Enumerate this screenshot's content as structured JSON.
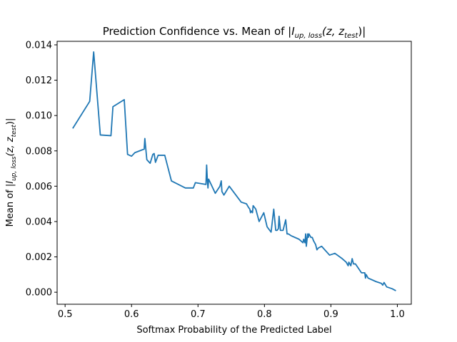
{
  "chart_data": {
    "type": "line",
    "title": "Prediction Confidence vs. Mean of |I_{up, loss}(z, z_{test})|",
    "title_parts": {
      "prefix": "Prediction Confidence vs. Mean of |",
      "I": "I",
      "I_sub": "up, loss",
      "args_open": "(z, z",
      "args_sub": "test",
      "args_close": ")|"
    },
    "xlabel": "Softmax Probability of the Predicted Label",
    "ylabel_parts": {
      "prefix": "Mean of |",
      "I": "I",
      "I_sub": "up, loss",
      "args_open": "(z, z",
      "args_sub": "test",
      "args_close": ")|"
    },
    "xlim": [
      0.488,
      1.021
    ],
    "ylim": [
      -0.00068,
      0.0142
    ],
    "xticks": [
      0.5,
      0.6,
      0.7,
      0.8,
      0.9,
      1.0
    ],
    "xtick_labels": [
      "0.5",
      "0.6",
      "0.7",
      "0.8",
      "0.9",
      "1.0"
    ],
    "yticks": [
      0.0,
      0.002,
      0.004,
      0.006,
      0.008,
      0.01,
      0.012,
      0.014
    ],
    "ytick_labels": [
      "0.000",
      "0.002",
      "0.004",
      "0.006",
      "0.008",
      "0.010",
      "0.012",
      "0.014"
    ],
    "grid": false,
    "line_color": "#1f77b4",
    "series": [
      {
        "x": [
          0.512,
          0.537,
          0.543,
          0.553,
          0.569,
          0.572,
          0.589,
          0.594,
          0.6,
          0.605,
          0.619,
          0.62,
          0.621,
          0.623,
          0.628,
          0.632,
          0.634,
          0.636,
          0.64,
          0.65,
          0.66,
          0.681,
          0.693,
          0.696,
          0.712,
          0.713,
          0.714,
          0.715,
          0.716,
          0.726,
          0.733,
          0.735,
          0.736,
          0.739,
          0.747,
          0.765,
          0.773,
          0.776,
          0.778,
          0.779,
          0.78,
          0.782,
          0.783,
          0.787,
          0.792,
          0.799,
          0.804,
          0.81,
          0.814,
          0.817,
          0.819,
          0.821,
          0.822,
          0.824,
          0.828,
          0.832,
          0.834,
          0.836,
          0.84,
          0.852,
          0.855,
          0.858,
          0.859,
          0.861,
          0.862,
          0.863,
          0.865,
          0.866,
          0.867,
          0.87,
          0.872,
          0.874,
          0.877,
          0.879,
          0.881,
          0.886,
          0.898,
          0.906,
          0.917,
          0.923,
          0.926,
          0.927,
          0.93,
          0.932,
          0.934,
          0.937,
          0.946,
          0.951,
          0.952,
          0.953,
          0.956,
          0.968,
          0.976,
          0.978,
          0.98,
          0.984,
          0.992,
          0.997
        ],
        "y": [
          0.0093,
          0.0108,
          0.0136,
          0.0089,
          0.00886,
          0.0105,
          0.0109,
          0.0078,
          0.0077,
          0.0079,
          0.0081,
          0.0087,
          0.0083,
          0.0075,
          0.0073,
          0.0078,
          0.00785,
          0.00735,
          0.00775,
          0.00775,
          0.0063,
          0.0059,
          0.0059,
          0.0062,
          0.0061,
          0.0072,
          0.0064,
          0.0059,
          0.0064,
          0.0056,
          0.006,
          0.0063,
          0.0057,
          0.0055,
          0.006,
          0.0051,
          0.005,
          0.0048,
          0.0047,
          0.0045,
          0.0046,
          0.0045,
          0.0049,
          0.0047,
          0.004,
          0.0045,
          0.0037,
          0.0034,
          0.0047,
          0.0035,
          0.0035,
          0.0036,
          0.0043,
          0.0035,
          0.0035,
          0.0041,
          0.0033,
          0.0033,
          0.0032,
          0.003,
          0.0029,
          0.0028,
          0.003,
          0.0028,
          0.0033,
          0.0026,
          0.0033,
          0.0031,
          0.0033,
          0.0031,
          0.0031,
          0.0029,
          0.0027,
          0.0024,
          0.0025,
          0.0026,
          0.0021,
          0.0022,
          0.0019,
          0.0017,
          0.0015,
          0.0017,
          0.0015,
          0.0019,
          0.0016,
          0.0016,
          0.0011,
          0.0011,
          0.0008,
          0.001,
          0.0008,
          0.0006,
          0.0005,
          0.0004,
          0.00055,
          0.0003,
          0.0002,
          0.0001
        ]
      }
    ]
  }
}
